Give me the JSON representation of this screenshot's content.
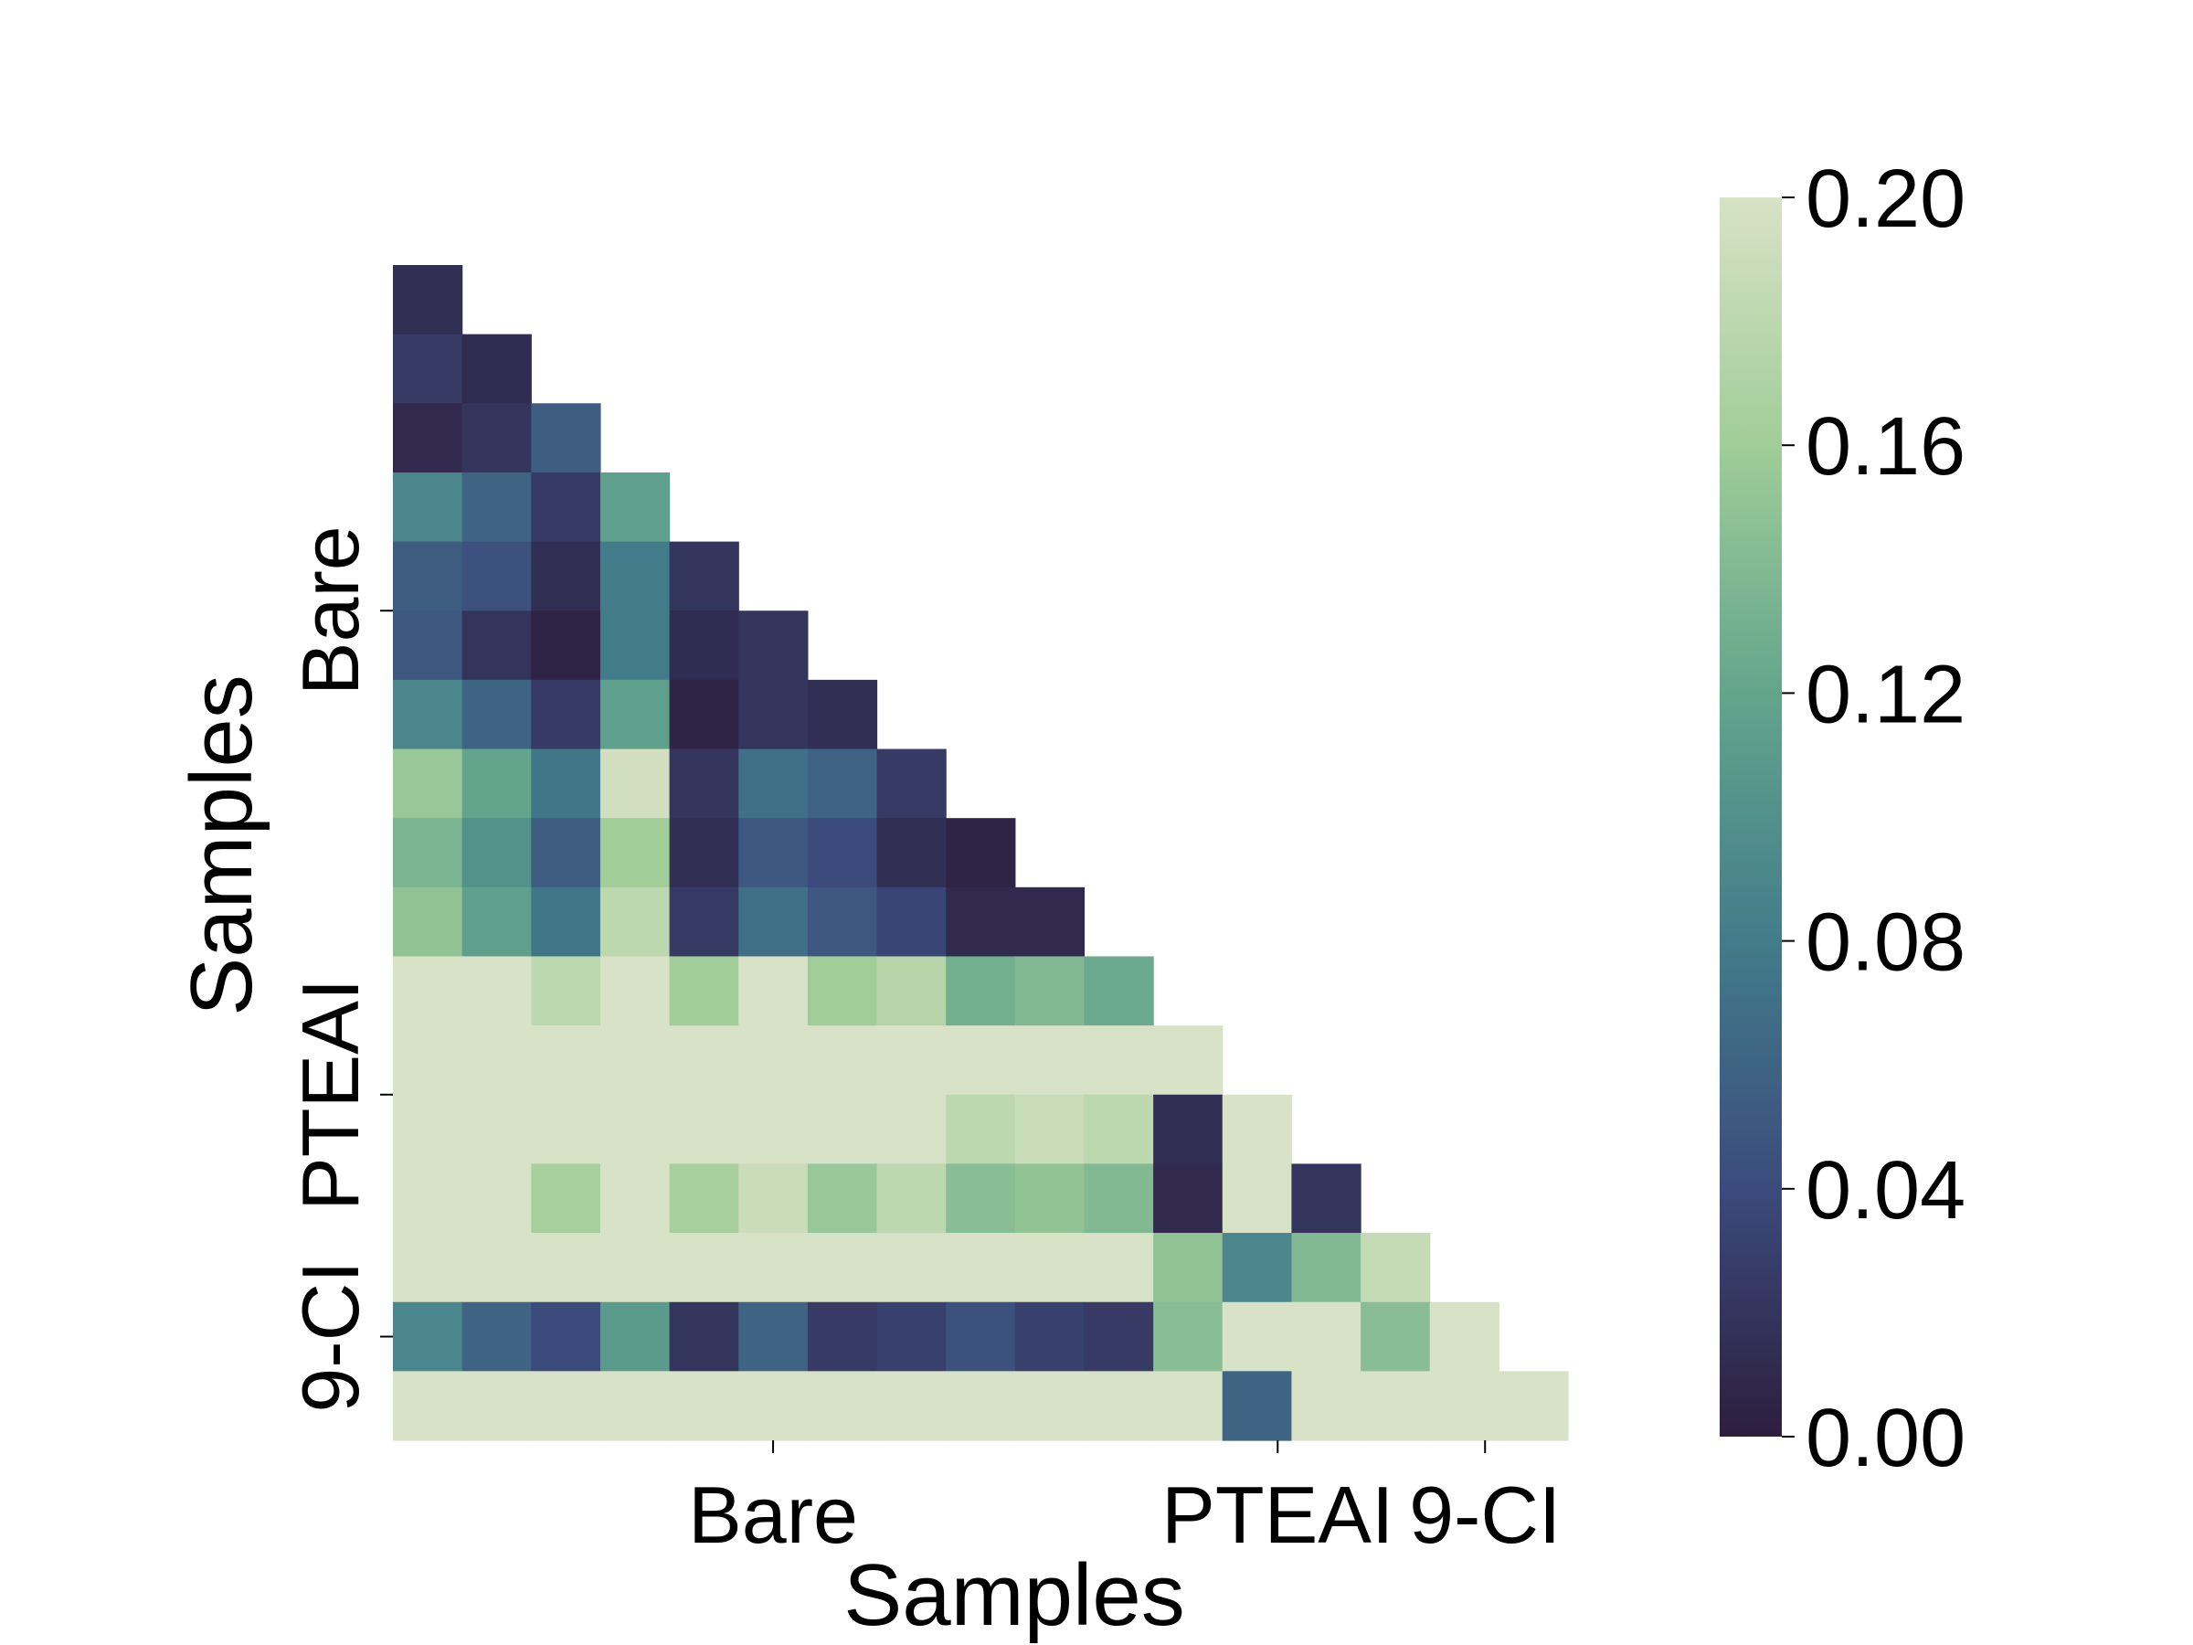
{
  "chart_data": {
    "type": "heatmap",
    "title": "",
    "xlabel": "Samples",
    "ylabel": "Samples",
    "n": 17,
    "mask": "lower-triangle-including-diagonal",
    "x_tick_labels": [
      {
        "label": "Bare",
        "position": 5.5
      },
      {
        "label": "PTEAI",
        "position": 12.8
      },
      {
        "label": "9-CI",
        "position": 15.8
      }
    ],
    "y_tick_labels": [
      {
        "label": "Bare",
        "position": 5.0
      },
      {
        "label": "PTEAI",
        "position": 12.0
      },
      {
        "label": "9-CI",
        "position": 15.5
      }
    ],
    "colorbar": {
      "vmin": 0.0,
      "vmax": 0.2,
      "ticks": [
        "0.00",
        "0.04",
        "0.08",
        "0.12",
        "0.16",
        "0.20"
      ],
      "colormap": [
        "#2d1e3e",
        "#3b4b7c",
        "#427c8a",
        "#63a58c",
        "#a0cd98",
        "#d8e2c6"
      ]
    },
    "values": [
      [
        0.015
      ],
      [
        0.025,
        0.012
      ],
      [
        0.01,
        0.02,
        0.055
      ],
      [
        0.09,
        0.06,
        0.025,
        0.115
      ],
      [
        0.055,
        0.045,
        0.015,
        0.08,
        0.02
      ],
      [
        0.05,
        0.02,
        0.005,
        0.08,
        0.012,
        0.02
      ],
      [
        0.09,
        0.06,
        0.025,
        0.115,
        0.005,
        0.02,
        0.015
      ],
      [
        0.155,
        0.12,
        0.075,
        0.195,
        0.02,
        0.07,
        0.06,
        0.025
      ],
      [
        0.135,
        0.1,
        0.055,
        0.16,
        0.015,
        0.05,
        0.04,
        0.015,
        0.005
      ],
      [
        0.15,
        0.115,
        0.075,
        0.18,
        0.025,
        0.07,
        0.05,
        0.035,
        0.01,
        0.01
      ],
      [
        0.2,
        0.2,
        0.18,
        0.2,
        0.16,
        0.2,
        0.16,
        0.175,
        0.13,
        0.14,
        0.125
      ],
      [
        0.2,
        0.2,
        0.2,
        0.2,
        0.2,
        0.2,
        0.2,
        0.2,
        0.2,
        0.2,
        0.2,
        0.2
      ],
      [
        0.2,
        0.2,
        0.2,
        0.2,
        0.2,
        0.2,
        0.2,
        0.2,
        0.18,
        0.19,
        0.18,
        0.015,
        0.2
      ],
      [
        0.2,
        0.2,
        0.165,
        0.2,
        0.165,
        0.19,
        0.155,
        0.18,
        0.145,
        0.15,
        0.14,
        0.01,
        0.2,
        0.02
      ],
      [
        0.2,
        0.2,
        0.2,
        0.2,
        0.2,
        0.2,
        0.2,
        0.2,
        0.2,
        0.2,
        0.2,
        0.15,
        0.09,
        0.14,
        0.185
      ],
      [
        0.09,
        0.06,
        0.04,
        0.11,
        0.02,
        0.06,
        0.025,
        0.03,
        0.045,
        0.03,
        0.025,
        0.145,
        0.2,
        0.2,
        0.145,
        0.2
      ],
      [
        0.2,
        0.2,
        0.2,
        0.2,
        0.2,
        0.2,
        0.2,
        0.2,
        0.2,
        0.2,
        0.2,
        0.2,
        0.06,
        0.2,
        0.2,
        0.2,
        0.2
      ]
    ]
  }
}
